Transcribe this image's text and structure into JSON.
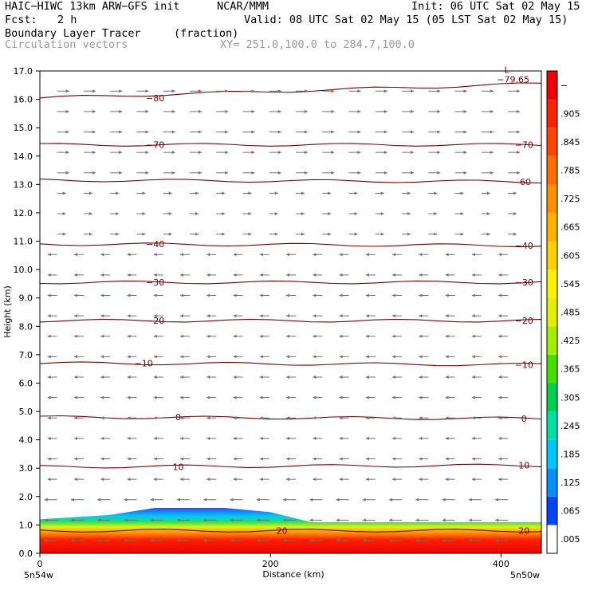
{
  "header": {
    "model": "HAIC−HIWC 13km ARW−GFS init",
    "org": "NCAR/MMM",
    "init": "Init: 06 UTC Sat 02 May 15",
    "fcst_label": "Fcst:",
    "fcst_value": "2 h",
    "valid": "Valid: 08 UTC Sat 02 May 15 (05 LST Sat 02 May 15)",
    "field_name": "Boundary Layer Tracer",
    "field_unit": "(fraction)",
    "vector_name": "Circulation vectors",
    "xy_range": "XY= 251.0,100.0 to 284.7,100.0"
  },
  "chart_data": {
    "type": "heatmap",
    "ylabel": "Height (km)",
    "xlabel": "Distance (km)",
    "xlim": [
      0,
      435
    ],
    "ylim": [
      0,
      17
    ],
    "x_ticks": [
      {
        "value": 0,
        "label": "0"
      },
      {
        "value": 200,
        "label": "200"
      },
      {
        "value": 400,
        "label": "400"
      }
    ],
    "x_end_labels": {
      "left": "5n54w",
      "right": "5n50w"
    },
    "y_ticks": [
      0,
      1,
      2,
      3,
      4,
      5,
      6,
      7,
      8,
      9,
      10,
      11,
      12,
      13,
      14,
      15,
      16,
      17
    ],
    "y_tick_labels": [
      "0.0",
      "1.0",
      "2.0",
      "3.0",
      "4.0",
      "5.0",
      "6.0",
      "7.0",
      "8.0",
      "9.0",
      "10.0",
      "11.0",
      "12.0",
      "13.0",
      "14.0",
      "15.0",
      "16.0",
      "17.0"
    ],
    "colorbar": {
      "labels": [
        ".005",
        ".065",
        ".125",
        ".185",
        ".245",
        ".305",
        ".365",
        ".425",
        ".485",
        ".545",
        ".605",
        ".665",
        ".725",
        ".785",
        ".845",
        ".905",
        "−"
      ],
      "colors": [
        "#ffffff",
        "#0044ff",
        "#0090ff",
        "#00c8ff",
        "#00e0a0",
        "#00d050",
        "#40e000",
        "#a0f000",
        "#e0f000",
        "#fff000",
        "#ffd000",
        "#ffb000",
        "#ff9000",
        "#ff6c00",
        "#ff4400",
        "#ff2000",
        "#f00000"
      ]
    },
    "tracer_layer": [
      {
        "x": 0,
        "top": 1.2
      },
      {
        "x": 60,
        "top": 1.35
      },
      {
        "x": 100,
        "top": 1.6
      },
      {
        "x": 160,
        "top": 1.6
      },
      {
        "x": 200,
        "top": 1.45
      },
      {
        "x": 235,
        "top": 1.1
      },
      {
        "x": 435,
        "top": 1.1
      }
    ],
    "temperature_contours": [
      {
        "label": "−80",
        "z_left": 16.05,
        "z_right": 16.55
      },
      {
        "label": "−70",
        "z_left": 14.4,
        "z_right": 14.4
      },
      {
        "label": "−60",
        "z_left": 13.15,
        "z_right": 13.1
      },
      {
        "label": "−40",
        "z_left": 10.9,
        "z_right": 10.85
      },
      {
        "label": "−30",
        "z_left": 9.55,
        "z_right": 9.55
      },
      {
        "label": "−20",
        "z_left": 8.2,
        "z_right": 8.2
      },
      {
        "label": "−10",
        "z_left": 6.7,
        "z_right": 6.65
      },
      {
        "label": "0",
        "z_left": 4.8,
        "z_right": 4.75
      },
      {
        "label": "10",
        "z_left": 3.05,
        "z_right": 3.1
      },
      {
        "label": "20",
        "z_left": 0.8,
        "z_right": 0.8
      }
    ],
    "contour_labels": [
      {
        "text": "−80",
        "x": 100,
        "z": 16.05
      },
      {
        "text": "−70",
        "x": 100,
        "z": 14.4
      },
      {
        "text": "−70",
        "x": 420,
        "z": 14.4
      },
      {
        "text": "−60",
        "x": 418,
        "z": 13.1
      },
      {
        "text": "−40",
        "x": 100,
        "z": 10.9
      },
      {
        "text": "−40",
        "x": 420,
        "z": 10.85
      },
      {
        "text": "−30",
        "x": 100,
        "z": 9.55
      },
      {
        "text": "−30",
        "x": 420,
        "z": 9.55
      },
      {
        "text": "−20",
        "x": 100,
        "z": 8.2
      },
      {
        "text": "−20",
        "x": 420,
        "z": 8.2
      },
      {
        "text": "−10",
        "x": 90,
        "z": 6.7
      },
      {
        "text": "−10",
        "x": 420,
        "z": 6.65
      },
      {
        "text": "0",
        "x": 120,
        "z": 4.8
      },
      {
        "text": "0",
        "x": 420,
        "z": 4.75
      },
      {
        "text": "10",
        "x": 120,
        "z": 3.05
      },
      {
        "text": "10",
        "x": 420,
        "z": 3.1
      },
      {
        "text": "20",
        "x": 210,
        "z": 0.8
      },
      {
        "text": "20",
        "x": 420,
        "z": 0.8
      }
    ],
    "minimum": {
      "label": "L",
      "value": "−79.65",
      "x": 405,
      "z": 16.7
    },
    "wind_regime": {
      "westerly_above_km": 11.2,
      "easterly_below_km": 11.2
    }
  }
}
